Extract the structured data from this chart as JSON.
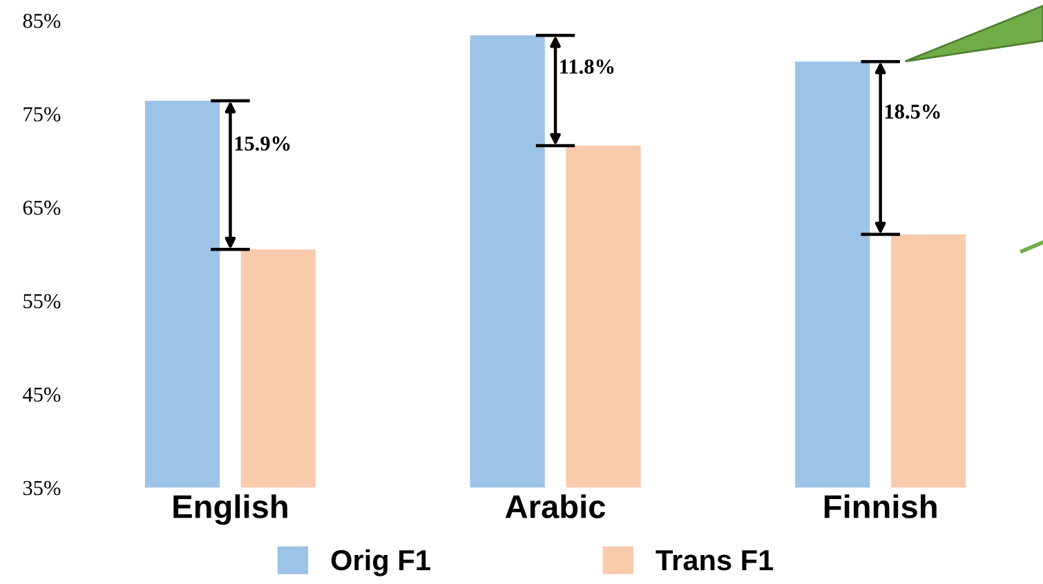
{
  "chart_data": {
    "type": "bar",
    "categories": [
      "English",
      "Arabic",
      "Finnish"
    ],
    "series": [
      {
        "name": "Orig F1",
        "color": "#9dc3e6",
        "values": [
          76.4,
          83.4,
          80.6
        ]
      },
      {
        "name": "Trans F1",
        "color": "#f8cbad",
        "values": [
          60.5,
          71.6,
          62.1
        ]
      }
    ],
    "ylim": [
      35,
      85
    ],
    "yticks": [
      {
        "value": 35,
        "label": "35%"
      },
      {
        "value": 45,
        "label": "45%"
      },
      {
        "value": 55,
        "label": "55%"
      },
      {
        "value": 65,
        "label": "65%"
      },
      {
        "value": 75,
        "label": "75%"
      },
      {
        "value": 85,
        "label": "85%"
      }
    ],
    "annotations": [
      "15.9%",
      "11.8%",
      "18.5%"
    ],
    "grid": false,
    "legend": "bottom"
  }
}
